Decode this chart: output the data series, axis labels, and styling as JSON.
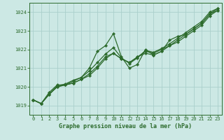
{
  "background_color": "#cce8e4",
  "grid_color": "#aacfcb",
  "line_color": "#2d6b2d",
  "title": "Graphe pression niveau de la mer (hPa)",
  "xlim": [
    -0.5,
    23.5
  ],
  "ylim": [
    1018.5,
    1024.5
  ],
  "xticks": [
    0,
    1,
    2,
    3,
    4,
    5,
    6,
    7,
    8,
    9,
    10,
    11,
    12,
    13,
    14,
    15,
    16,
    17,
    18,
    19,
    20,
    21,
    22,
    23
  ],
  "yticks": [
    1019,
    1020,
    1021,
    1022,
    1023,
    1024
  ],
  "series": [
    [
      1019.3,
      1019.1,
      1019.7,
      1020.1,
      1020.1,
      1020.3,
      1020.5,
      1021.0,
      1021.9,
      1022.2,
      1022.85,
      1021.6,
      1021.0,
      1021.2,
      1022.0,
      1021.7,
      1021.9,
      1022.5,
      1022.7,
      1022.8,
      1023.1,
      1023.4,
      1023.9,
      1024.1
    ],
    [
      1019.3,
      1019.1,
      1019.6,
      1020.05,
      1020.15,
      1020.35,
      1020.5,
      1020.85,
      1021.3,
      1021.75,
      1022.1,
      1021.55,
      1021.25,
      1021.55,
      1021.95,
      1021.85,
      1022.05,
      1022.3,
      1022.6,
      1022.9,
      1023.2,
      1023.5,
      1024.0,
      1024.2
    ],
    [
      1019.3,
      1019.1,
      1019.6,
      1020.0,
      1020.1,
      1020.2,
      1020.4,
      1020.7,
      1021.1,
      1021.6,
      1021.8,
      1021.5,
      1021.3,
      1021.6,
      1021.9,
      1021.8,
      1022.0,
      1022.2,
      1022.5,
      1022.8,
      1023.1,
      1023.4,
      1023.9,
      1024.2
    ],
    [
      1019.3,
      1019.1,
      1019.6,
      1020.0,
      1020.1,
      1020.2,
      1020.4,
      1020.6,
      1021.0,
      1021.5,
      1021.8,
      1021.5,
      1021.3,
      1021.6,
      1021.8,
      1021.7,
      1021.9,
      1022.2,
      1022.4,
      1022.7,
      1023.0,
      1023.3,
      1023.8,
      1024.1
    ]
  ],
  "marker": "D",
  "markersize": 2.2,
  "linewidth": 0.9,
  "tick_fontsize": 5.0,
  "xlabel_fontsize": 6.0
}
